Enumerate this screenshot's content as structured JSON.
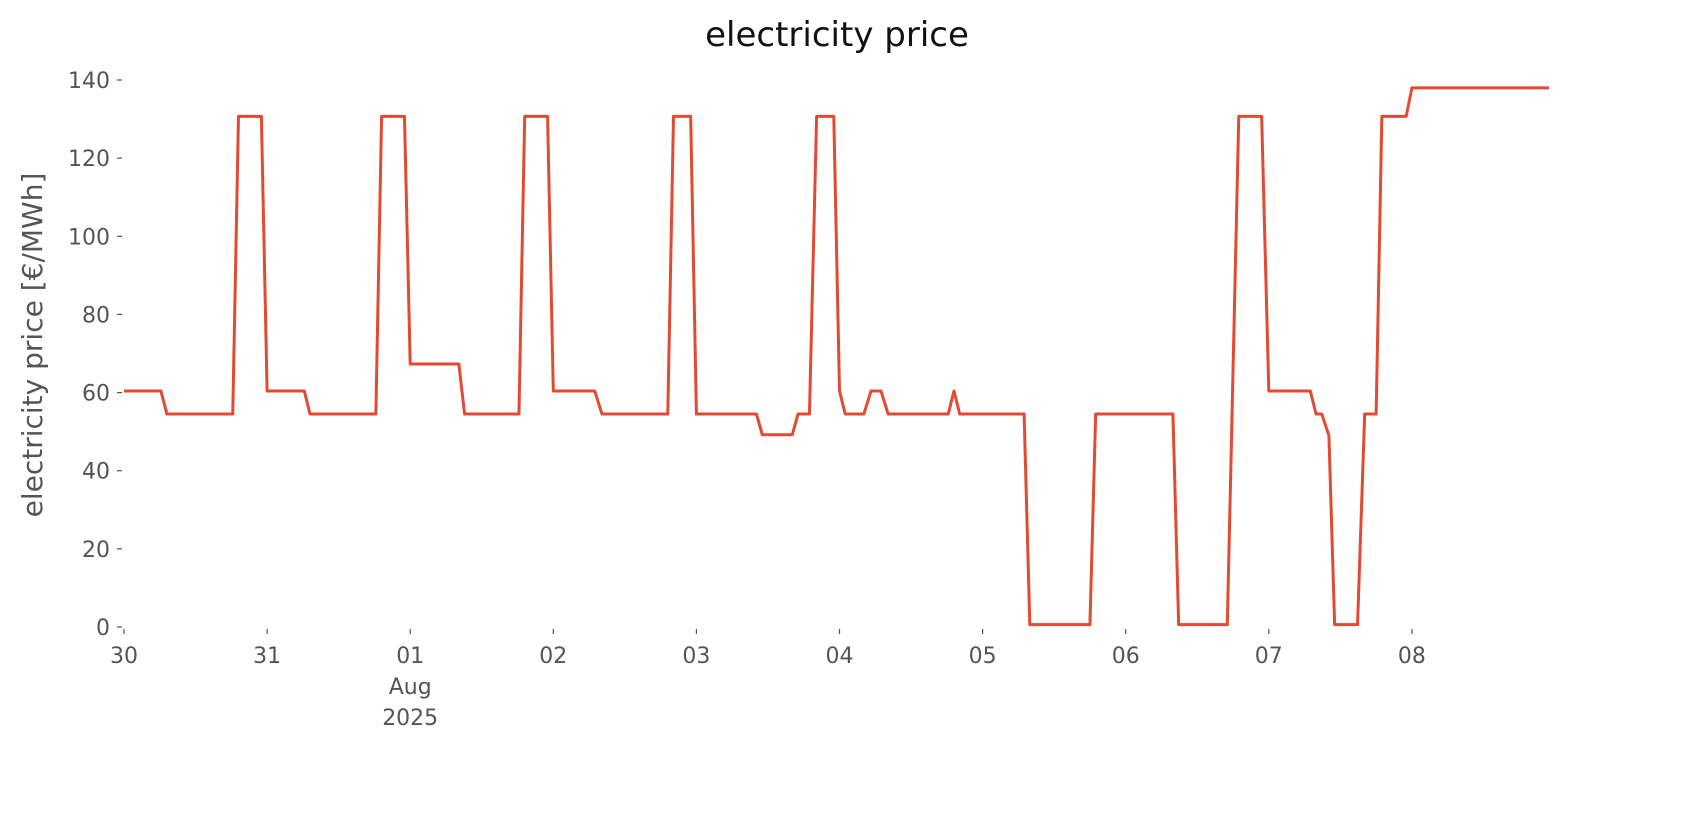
{
  "chart_data": {
    "type": "line",
    "title": "electricity price",
    "ylabel": "electricity price [€/MWh]",
    "x": [
      0,
      0.258,
      0.3,
      0.76,
      0.8,
      0.96,
      1.0,
      1.26,
      1.3,
      1.76,
      1.8,
      1.96,
      2.0,
      2.34,
      2.38,
      2.76,
      2.8,
      2.96,
      3.0,
      3.29,
      3.34,
      3.8,
      3.84,
      3.96,
      4.0,
      4.42,
      4.46,
      4.67,
      4.71,
      4.79,
      4.84,
      4.96,
      5.0,
      5.04,
      5.17,
      5.22,
      5.29,
      5.34,
      5.76,
      5.8,
      5.84,
      6.29,
      6.33,
      6.75,
      6.79,
      7.33,
      7.37,
      7.71,
      7.79,
      7.95,
      8.0,
      8.29,
      8.33,
      8.37,
      8.42,
      8.46,
      8.62,
      8.67,
      8.75,
      8.79,
      8.96,
      9.0,
      9.958
    ],
    "series": [
      {
        "name": "electricity price",
        "color": "#e24a33",
        "values": [
          60.4,
          60.4,
          54.5,
          54.5,
          130.7,
          130.7,
          60.4,
          60.4,
          54.5,
          54.5,
          130.7,
          130.7,
          67.3,
          67.3,
          54.5,
          54.5,
          130.7,
          130.7,
          60.4,
          60.4,
          54.5,
          54.5,
          130.7,
          130.7,
          54.5,
          54.5,
          49.2,
          49.2,
          54.5,
          54.5,
          130.7,
          130.7,
          60.4,
          54.5,
          54.5,
          60.4,
          60.4,
          54.5,
          54.5,
          60.4,
          54.5,
          54.5,
          0.6,
          0.6,
          54.5,
          54.5,
          0.6,
          0.6,
          130.7,
          130.7,
          60.4,
          60.4,
          54.5,
          54.5,
          49,
          0.6,
          0.6,
          54.5,
          54.5,
          130.7,
          130.7,
          138,
          138
        ]
      }
    ],
    "xlim": [
      0,
      9.958
    ],
    "xticks": [
      {
        "value": 0,
        "label": "30"
      },
      {
        "value": 1,
        "label": "31"
      },
      {
        "value": 2,
        "label": "01\nAug\n2025"
      },
      {
        "value": 3,
        "label": "02"
      },
      {
        "value": 4,
        "label": "03"
      },
      {
        "value": 5,
        "label": "04"
      },
      {
        "value": 6,
        "label": "05"
      },
      {
        "value": 7,
        "label": "06"
      },
      {
        "value": 8,
        "label": "07"
      },
      {
        "value": 9,
        "label": "08"
      }
    ],
    "ylim": [
      0,
      140
    ],
    "yticks": [
      0,
      20,
      40,
      60,
      80,
      100,
      120,
      140
    ],
    "grid": false
  }
}
